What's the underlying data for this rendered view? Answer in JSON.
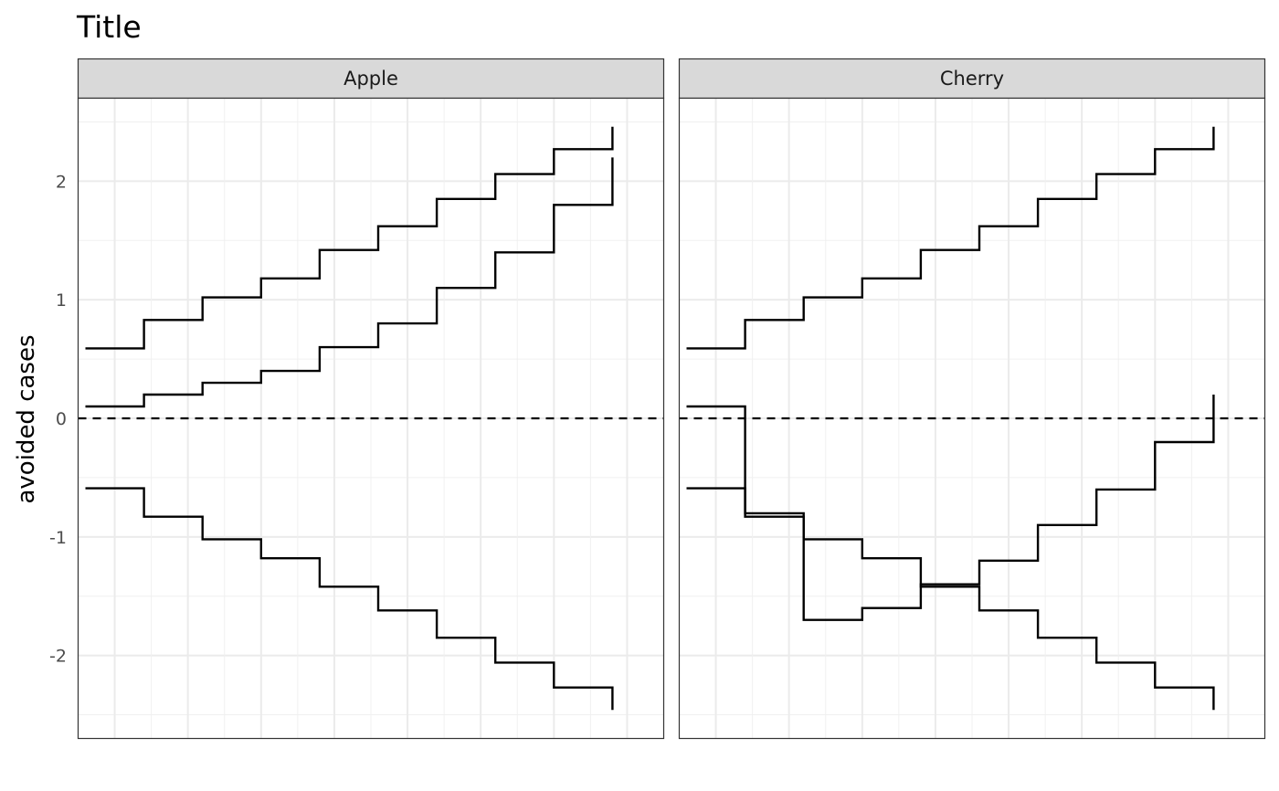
{
  "chart_data": {
    "type": "line",
    "step": true,
    "title": "Title",
    "ylabel": "avoided cases",
    "xlabel": "",
    "ylim": [
      -2.7,
      2.7
    ],
    "yticks": [
      -2,
      -1,
      0,
      1,
      2
    ],
    "ytick_labels": [
      "-2",
      "-1",
      "0",
      "1",
      "2"
    ],
    "xlim": [
      0.5,
      8.5
    ],
    "x_ticks_shown": false,
    "grid": true,
    "reference_line": {
      "y": 0,
      "style": "dashed"
    },
    "x": [
      0.6,
      1.4,
      2.2,
      3.0,
      3.8,
      4.6,
      5.4,
      6.2,
      7.0,
      7.8
    ],
    "facets": [
      {
        "label": "Apple",
        "series": [
          {
            "values": [
              0.59,
              0.83,
              1.02,
              1.18,
              1.42,
              1.62,
              1.85,
              2.06,
              2.27,
              2.46
            ]
          },
          {
            "values": [
              0.1,
              0.2,
              0.3,
              0.4,
              0.6,
              0.8,
              1.1,
              1.4,
              1.8,
              2.2
            ]
          },
          {
            "values": [
              -0.59,
              -0.83,
              -1.02,
              -1.18,
              -1.42,
              -1.62,
              -1.85,
              -2.06,
              -2.27,
              -2.46
            ]
          }
        ]
      },
      {
        "label": "Cherry",
        "series": [
          {
            "values": [
              0.59,
              0.83,
              1.02,
              1.18,
              1.42,
              1.62,
              1.85,
              2.06,
              2.27,
              2.46
            ]
          },
          {
            "values": [
              0.1,
              -0.8,
              -1.7,
              -1.6,
              -1.4,
              -1.2,
              -0.9,
              -0.6,
              -0.2,
              0.2
            ]
          },
          {
            "values": [
              -0.59,
              -0.83,
              -1.02,
              -1.18,
              -1.42,
              -1.62,
              -1.85,
              -2.06,
              -2.27,
              -2.46
            ]
          }
        ]
      }
    ]
  }
}
